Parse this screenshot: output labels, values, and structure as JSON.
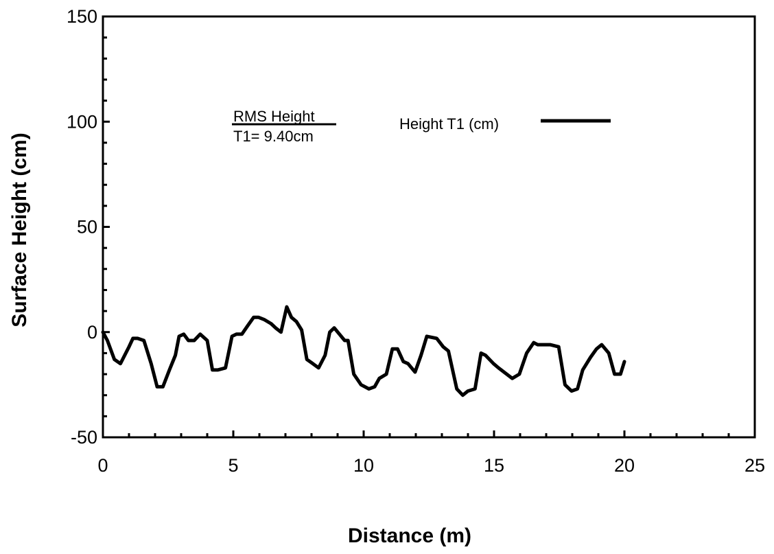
{
  "chart_data": {
    "type": "line",
    "title": "",
    "xlabel": "Distance (m)",
    "ylabel": "Surface Height  (cm)",
    "xlim": [
      0,
      25
    ],
    "ylim": [
      -50,
      150
    ],
    "x_ticks": [
      0,
      5,
      10,
      15,
      20,
      25
    ],
    "y_ticks": [
      -50,
      0,
      50,
      100,
      150
    ],
    "grid": false,
    "legend": {
      "position": "top-right",
      "label": "Height T1 (cm)"
    },
    "annotation": {
      "heading": "RMS Height",
      "value": "T1= 9.40cm"
    },
    "series": [
      {
        "name": "Height T1 (cm)",
        "color": "#000000",
        "x": [
          0,
          0.17,
          0.44,
          0.67,
          1.0,
          1.15,
          1.33,
          1.57,
          1.85,
          2.08,
          2.3,
          2.55,
          2.78,
          2.92,
          3.1,
          3.28,
          3.5,
          3.73,
          4.0,
          4.2,
          4.4,
          4.7,
          4.95,
          5.12,
          5.33,
          5.55,
          5.78,
          5.97,
          6.18,
          6.45,
          6.62,
          6.83,
          7.05,
          7.23,
          7.42,
          7.62,
          7.82,
          8.05,
          8.27,
          8.52,
          8.7,
          8.87,
          9.07,
          9.27,
          9.4,
          9.62,
          9.9,
          10.2,
          10.42,
          10.6,
          10.87,
          11.1,
          11.3,
          11.52,
          11.7,
          11.97,
          12.2,
          12.42,
          12.8,
          13.05,
          13.25,
          13.57,
          13.8,
          14.0,
          14.27,
          14.5,
          14.67,
          14.98,
          15.17,
          15.7,
          15.97,
          16.25,
          16.52,
          16.67,
          16.9,
          17.15,
          17.48,
          17.72,
          17.97,
          18.2,
          18.4,
          18.7,
          18.93,
          19.13,
          19.4,
          19.62,
          19.85,
          20.0
        ],
        "values": [
          0,
          -4,
          -13,
          -15,
          -7,
          -3,
          -3,
          -4,
          -15,
          -26,
          -26,
          -18,
          -11,
          -2,
          -1,
          -4,
          -4,
          -1,
          -4,
          -18,
          -18,
          -17,
          -2,
          -1,
          -1,
          3,
          7,
          7,
          6,
          4,
          2,
          0,
          12,
          7,
          5,
          1,
          -13,
          -15,
          -17,
          -11,
          0,
          2,
          -1,
          -4,
          -4,
          -20,
          -25,
          -27,
          -26,
          -22,
          -20,
          -8,
          -8,
          -14,
          -15,
          -19,
          -11,
          -2,
          -3,
          -7,
          -9,
          -27,
          -30,
          -28,
          -27,
          -10,
          -11,
          -15,
          -17,
          -22,
          -20,
          -10,
          -5,
          -6,
          -6,
          -6,
          -7,
          -25,
          -28,
          -27,
          -18,
          -12,
          -8,
          -6,
          -10,
          -20,
          -20,
          -14
        ]
      }
    ]
  }
}
